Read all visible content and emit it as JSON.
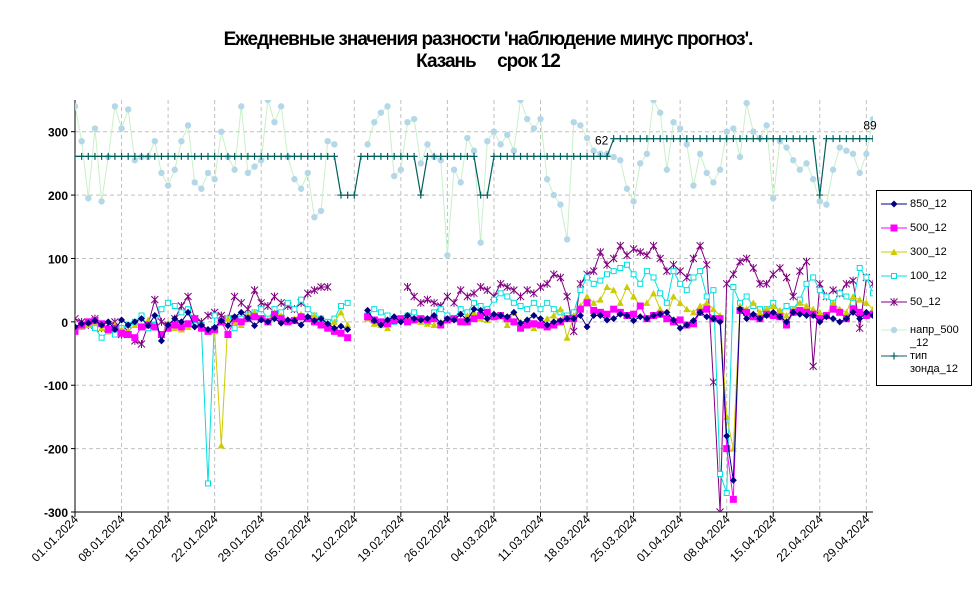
{
  "chart_data": {
    "type": "line",
    "title": "Ежедневные значения разности 'наблюдение минус прогноз'.",
    "subtitle": "Казань     срок 12",
    "ylim": [
      -300,
      350
    ],
    "yticks": [
      -300,
      -200,
      -100,
      0,
      100,
      200,
      300
    ],
    "ytick_labels": [
      "-300",
      "-200",
      "-100",
      "0",
      "100",
      "200",
      "300"
    ],
    "xlim": [
      0,
      120
    ],
    "xtick_positions": [
      0,
      7,
      14,
      21,
      28,
      35,
      42,
      49,
      56,
      63,
      70,
      77,
      84,
      91,
      98,
      105,
      112,
      119
    ],
    "xtick_labels": [
      "01.01.2024",
      "08.01.2024",
      "15.01.2024",
      "22.01.2024",
      "29.01.2024",
      "05.02.2024",
      "12.02.2024",
      "19.02.2024",
      "26.02.2024",
      "04.03.2024",
      "11.03.2024",
      "18.03.2024",
      "25.03.2024",
      "01.04.2024",
      "08.04.2024",
      "15.04.2024",
      "22.04.2024",
      "29.04.2024"
    ],
    "grid": true,
    "legend_position": "right",
    "annotations": [
      "62",
      "89"
    ],
    "series": [
      {
        "name": "850_12",
        "color": "#000080",
        "marker": "diamond",
        "values": [
          -8,
          -3,
          -2,
          2,
          -5,
          0,
          -12,
          3,
          -5,
          0,
          5,
          -6,
          10,
          -30,
          -5,
          5,
          0,
          15,
          -8,
          -5,
          -12,
          -9,
          2,
          -6,
          8,
          15,
          6,
          -6,
          3,
          0,
          5,
          -2,
          3,
          2,
          -5,
          8,
          2,
          5,
          -3,
          -10,
          -7,
          -12,
          null,
          null,
          18,
          2,
          -5,
          3,
          8,
          0,
          10,
          5,
          3,
          5,
          10,
          -2,
          5,
          3,
          12,
          3,
          20,
          18,
          5,
          12,
          10,
          8,
          15,
          -2,
          3,
          10,
          5,
          -5,
          0,
          2,
          5,
          5,
          10,
          -8,
          10,
          10,
          3,
          5,
          12,
          10,
          2,
          8,
          5,
          10,
          12,
          15,
          3,
          -10,
          -5,
          2,
          15,
          8,
          5,
          0,
          -180,
          -250,
          20,
          5,
          12,
          5,
          10,
          15,
          8,
          0,
          15,
          12,
          10,
          10,
          0,
          8,
          5,
          0,
          5,
          15,
          5,
          15,
          10,
          5,
          3,
          8,
          12,
          18,
          22
        ]
      },
      {
        "name": "500_12",
        "color": "#ff00ff",
        "marker": "square",
        "values": [
          -15,
          -5,
          0,
          2,
          -3,
          -12,
          -10,
          -18,
          -20,
          -25,
          -8,
          -5,
          -8,
          -20,
          -10,
          -5,
          -8,
          -3,
          5,
          -10,
          -15,
          -12,
          0,
          -20,
          5,
          0,
          5,
          8,
          5,
          0,
          12,
          5,
          0,
          2,
          8,
          5,
          0,
          -5,
          -10,
          -15,
          -18,
          -25,
          null,
          null,
          8,
          3,
          0,
          -3,
          2,
          5,
          0,
          3,
          5,
          3,
          5,
          -5,
          3,
          5,
          0,
          0,
          5,
          10,
          15,
          8,
          10,
          5,
          0,
          -10,
          -5,
          -3,
          -5,
          -8,
          -5,
          0,
          5,
          5,
          20,
          30,
          18,
          15,
          12,
          20,
          15,
          10,
          12,
          25,
          5,
          10,
          12,
          5,
          0,
          3,
          -5,
          -3,
          15,
          20,
          5,
          5,
          -200,
          -280,
          18,
          15,
          8,
          5,
          12,
          10,
          8,
          -5,
          15,
          18,
          15,
          12,
          5,
          10,
          20,
          15,
          5,
          20,
          15,
          10,
          12,
          15,
          18,
          28,
          30
        ]
      },
      {
        "name": "300_12",
        "color": "#cccc00",
        "marker": "triangle",
        "values": [
          -12,
          -8,
          -5,
          0,
          -10,
          -15,
          -5,
          -12,
          -15,
          -5,
          -8,
          3,
          -8,
          -20,
          -3,
          -10,
          -12,
          -8,
          5,
          -10,
          -12,
          -15,
          -195,
          5,
          0,
          -5,
          10,
          15,
          5,
          3,
          15,
          10,
          0,
          5,
          12,
          5,
          10,
          0,
          -8,
          0,
          15,
          -5,
          null,
          null,
          5,
          -3,
          -5,
          -10,
          5,
          3,
          8,
          5,
          0,
          -3,
          -5,
          0,
          5,
          5,
          2,
          10,
          15,
          5,
          3,
          10,
          8,
          -5,
          15,
          0,
          -5,
          -10,
          -5,
          5,
          10,
          20,
          -25,
          10,
          25,
          40,
          30,
          35,
          55,
          50,
          30,
          55,
          40,
          25,
          30,
          45,
          20,
          10,
          40,
          30,
          20,
          15,
          25,
          30,
          20,
          10,
          -150,
          -200,
          25,
          20,
          30,
          15,
          20,
          25,
          18,
          10,
          20,
          30,
          25,
          20,
          15,
          10,
          30,
          20,
          15,
          40,
          35,
          30,
          20,
          15,
          25,
          30
        ]
      },
      {
        "name": "100_12",
        "color": "#00e0e0",
        "marker": "square-open",
        "values": [
          -10,
          -8,
          -5,
          -10,
          -25,
          -15,
          -20,
          -10,
          -5,
          0,
          10,
          -10,
          -5,
          20,
          30,
          25,
          15,
          20,
          -5,
          -5,
          -255,
          10,
          0,
          5,
          -10,
          5,
          10,
          15,
          20,
          5,
          20,
          15,
          30,
          20,
          35,
          20,
          10,
          5,
          0,
          5,
          25,
          30,
          null,
          null,
          10,
          20,
          15,
          10,
          0,
          5,
          10,
          15,
          5,
          0,
          15,
          20,
          10,
          5,
          20,
          15,
          30,
          25,
          20,
          35,
          45,
          40,
          30,
          25,
          20,
          30,
          20,
          30,
          20,
          15,
          10,
          15,
          50,
          70,
          60,
          65,
          75,
          80,
          85,
          90,
          75,
          60,
          80,
          70,
          45,
          30,
          80,
          60,
          50,
          70,
          80,
          40,
          50,
          -240,
          -270,
          55,
          30,
          40,
          25,
          20,
          20,
          30,
          15,
          25,
          20,
          35,
          60,
          70,
          50,
          40,
          30,
          45,
          40,
          30,
          85,
          70,
          45,
          20,
          30,
          40
        ]
      },
      {
        "name": "50_12",
        "color": "#800080",
        "marker": "x",
        "values": [
          5,
          0,
          -5,
          5,
          -10,
          -5,
          0,
          -20,
          -15,
          -30,
          -35,
          -5,
          35,
          0,
          -5,
          5,
          25,
          40,
          5,
          0,
          10,
          15,
          10,
          5,
          40,
          30,
          20,
          50,
          30,
          25,
          40,
          30,
          25,
          20,
          30,
          45,
          50,
          55,
          55,
          null,
          null,
          null,
          null,
          null,
          null,
          null,
          null,
          null,
          null,
          null,
          55,
          40,
          30,
          35,
          30,
          25,
          40,
          30,
          50,
          40,
          45,
          55,
          50,
          40,
          60,
          55,
          50,
          40,
          50,
          45,
          55,
          60,
          75,
          70,
          40,
          -15,
          60,
          75,
          80,
          110,
          90,
          100,
          120,
          105,
          115,
          110,
          105,
          120,
          100,
          80,
          90,
          80,
          70,
          100,
          120,
          90,
          -95,
          -300,
          60,
          75,
          95,
          100,
          85,
          60,
          60,
          75,
          85,
          70,
          40,
          80,
          95,
          -70,
          60,
          40,
          50,
          45,
          60,
          65,
          -10,
          70,
          60,
          35,
          25,
          20,
          30
        ]
      },
      {
        "name": "напр_500\n_12",
        "color": "#b4d8e8",
        "line_color": "#c8f0c8",
        "marker": "dot",
        "values": [
          340,
          285,
          195,
          305,
          190,
          260,
          340,
          305,
          335,
          255,
          260,
          260,
          285,
          235,
          215,
          240,
          285,
          310,
          220,
          210,
          235,
          225,
          300,
          260,
          240,
          340,
          235,
          245,
          255,
          350,
          315,
          340,
          260,
          225,
          210,
          235,
          165,
          175,
          285,
          280,
          null,
          null,
          null,
          null,
          280,
          315,
          330,
          340,
          230,
          240,
          315,
          320,
          250,
          280,
          260,
          255,
          105,
          240,
          220,
          290,
          270,
          125,
          285,
          300,
          280,
          295,
          270,
          350,
          320,
          305,
          320,
          225,
          200,
          185,
          130,
          315,
          310,
          290,
          270,
          265,
          265,
          260,
          255,
          210,
          190,
          250,
          265,
          350,
          330,
          240,
          315,
          305,
          280,
          215,
          265,
          235,
          220,
          240,
          300,
          305,
          260,
          345,
          300,
          290,
          310,
          195,
          285,
          275,
          255,
          240,
          250,
          225,
          190,
          185,
          240,
          275,
          270,
          265,
          235,
          265,
          320,
          330
        ]
      },
      {
        "name": "тип\nзонда_12",
        "color": "#006060",
        "marker": "plus",
        "values": [
          261,
          261,
          261,
          261,
          261,
          261,
          261,
          261,
          261,
          261,
          261,
          261,
          261,
          261,
          261,
          261,
          261,
          261,
          261,
          261,
          261,
          261,
          261,
          261,
          261,
          261,
          261,
          261,
          261,
          261,
          261,
          261,
          261,
          261,
          261,
          261,
          261,
          261,
          261,
          261,
          200,
          200,
          200,
          261,
          261,
          261,
          261,
          261,
          261,
          261,
          261,
          261,
          200,
          261,
          261,
          261,
          261,
          261,
          261,
          261,
          261,
          200,
          200,
          261,
          261,
          261,
          261,
          261,
          261,
          261,
          261,
          261,
          261,
          261,
          261,
          261,
          261,
          261,
          261,
          261,
          261,
          289,
          289,
          289,
          289,
          289,
          289,
          289,
          289,
          289,
          289,
          289,
          289,
          289,
          289,
          289,
          289,
          289,
          289,
          289,
          289,
          289,
          289,
          289,
          289,
          289,
          289,
          289,
          289,
          289,
          289,
          289,
          200,
          289,
          289,
          289,
          289,
          289,
          289,
          289,
          289,
          289,
          289,
          289,
          289,
          289,
          289,
          289,
          289,
          289
        ]
      }
    ]
  }
}
